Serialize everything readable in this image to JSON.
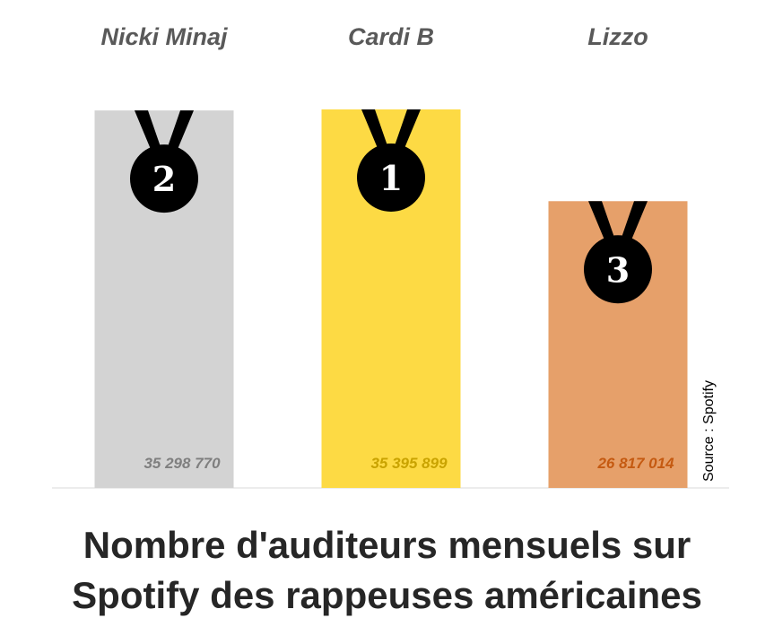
{
  "chart_data": {
    "type": "bar",
    "categories": [
      "Nicki Minaj",
      "Cardi B",
      "Lizzo"
    ],
    "values": [
      35298770,
      35395899,
      26817014
    ],
    "value_labels": [
      "35 298 770",
      "35 395 899",
      "26 817 014"
    ],
    "ranks": [
      "2",
      "1",
      "3"
    ],
    "title": [
      "Nombre d'auditeurs mensuels sur",
      "Spotify des rappeuses américaines"
    ],
    "source": "Source : Spotify",
    "ylim": [
      0,
      35395899
    ],
    "grid": false,
    "legend": "none",
    "colors": {
      "bars": [
        "#d3d3d3",
        "#fdda44",
        "#e6a06a"
      ],
      "value_labels": [
        "#7f7f7f",
        "#c9a300",
        "#c55a11"
      ],
      "medal": "#000000",
      "category_labels": "#595959",
      "axis": "#d9d9d9"
    }
  }
}
